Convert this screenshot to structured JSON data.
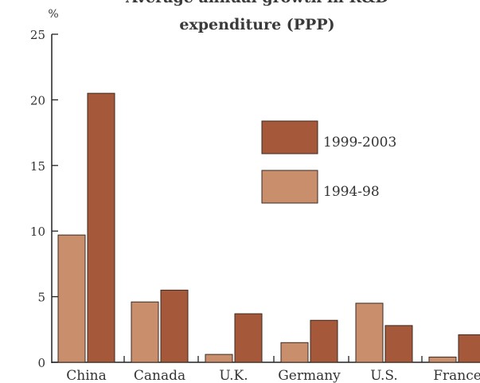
{
  "chart_data": {
    "type": "bar",
    "title_line1": "Average annual growth in R&D",
    "title_line2": "expenditure (PPP)",
    "ylabel": "%",
    "ylim": [
      0,
      25
    ],
    "yticks": [
      "0",
      "5",
      "10",
      "15",
      "20",
      "25"
    ],
    "categories": [
      "China",
      "Canada",
      "U.K.",
      "Germany",
      "U.S.",
      "France"
    ],
    "series": [
      {
        "name": "1994-98",
        "color": "#c98f6c",
        "values": [
          9.7,
          4.6,
          0.6,
          1.5,
          4.5,
          0.4
        ]
      },
      {
        "name": "1999-2003",
        "color": "#a6583a",
        "values": [
          20.5,
          5.5,
          3.7,
          3.2,
          2.8,
          2.1
        ]
      }
    ],
    "legend_order": [
      "1999-2003",
      "1994-98"
    ],
    "legend_position": "right, middle",
    "grid": false
  }
}
